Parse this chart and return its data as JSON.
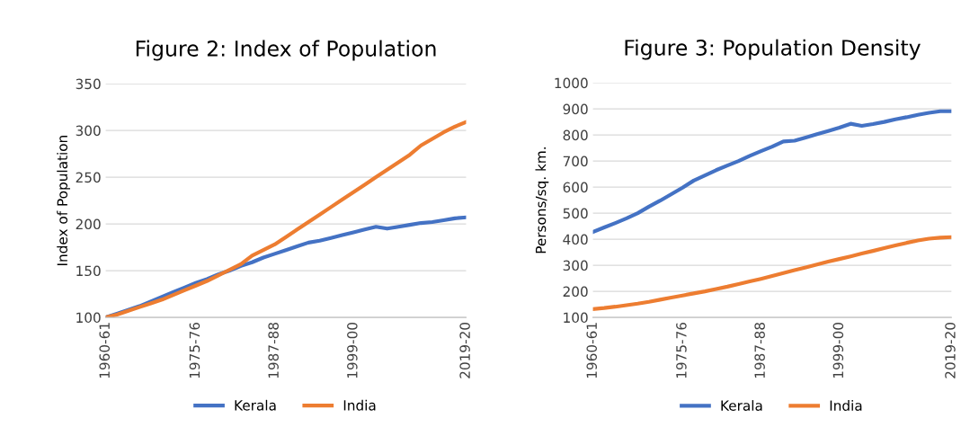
{
  "chart_data": [
    {
      "type": "line",
      "title": "Figure 2: Index of Population",
      "ylabel": "Index of Population",
      "categories": [
        "1960-61",
        null,
        null,
        null,
        null,
        null,
        null,
        null,
        "1975-76",
        null,
        null,
        null,
        null,
        null,
        null,
        "1987-88",
        null,
        null,
        null,
        null,
        null,
        null,
        "1999-00",
        null,
        null,
        null,
        null,
        null,
        null,
        null,
        null,
        null,
        "2019-20"
      ],
      "series": [
        {
          "name": "Kerala",
          "color": "#4472c4",
          "values": [
            100,
            104,
            108,
            112,
            117,
            122,
            127,
            132,
            137,
            141,
            146,
            150,
            155,
            159,
            164,
            168,
            172,
            176,
            180,
            182,
            185,
            188,
            191,
            194,
            197,
            195,
            197,
            199,
            201,
            202,
            204,
            206,
            207
          ]
        },
        {
          "name": "India",
          "color": "#ed7d31",
          "values": [
            100,
            103,
            107,
            111,
            115,
            119,
            124,
            129,
            134,
            139,
            145,
            151,
            157,
            166,
            172,
            178,
            186,
            194,
            202,
            210,
            218,
            226,
            234,
            242,
            250,
            258,
            266,
            274,
            284,
            291,
            298,
            304,
            309
          ]
        }
      ],
      "ylim": [
        100,
        350
      ],
      "yticks": [
        100,
        150,
        200,
        250,
        300,
        350
      ],
      "grid": "y",
      "legend": "bottom"
    },
    {
      "type": "line",
      "title": "Figure 3: Population Density",
      "ylabel": "Persons/sq. km.",
      "categories": [
        "1960-61",
        null,
        null,
        null,
        null,
        null,
        null,
        null,
        "1975-76",
        null,
        null,
        null,
        null,
        null,
        null,
        "1987-88",
        null,
        null,
        null,
        null,
        null,
        null,
        "1999-00",
        null,
        null,
        null,
        null,
        null,
        null,
        null,
        null,
        null,
        "2019-20"
      ],
      "series": [
        {
          "name": "Kerala",
          "color": "#4472c4",
          "values": [
            428,
            445,
            462,
            480,
            500,
            525,
            548,
            573,
            598,
            625,
            645,
            665,
            683,
            700,
            720,
            738,
            755,
            775,
            778,
            790,
            803,
            815,
            828,
            843,
            835,
            842,
            850,
            860,
            868,
            877,
            885,
            891,
            891
          ]
        },
        {
          "name": "India",
          "color": "#ed7d31",
          "values": [
            132,
            136,
            141,
            147,
            153,
            160,
            168,
            176,
            184,
            192,
            200,
            209,
            218,
            228,
            238,
            248,
            259,
            270,
            281,
            292,
            303,
            314,
            324,
            334,
            345,
            355,
            366,
            376,
            386,
            395,
            402,
            406,
            408
          ]
        }
      ],
      "ylim": [
        100,
        1000
      ],
      "yticks": [
        100,
        200,
        300,
        400,
        500,
        600,
        700,
        800,
        900,
        1000
      ],
      "grid": "y",
      "legend": "bottom"
    }
  ]
}
